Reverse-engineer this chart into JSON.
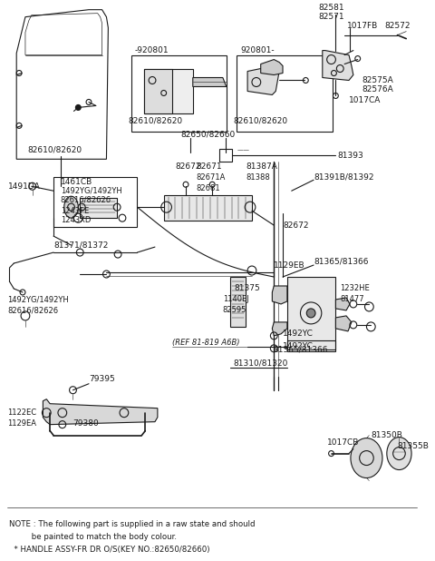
{
  "bg_color": "#ffffff",
  "fig_width": 4.8,
  "fig_height": 6.18,
  "dpi": 100,
  "note_lines": [
    "NOTE : The following part is supplied in a raw state and should",
    "         be painted to match the body colour.",
    "  * HANDLE ASSY-FR DR O/S(KEY NO.:82650/82660)"
  ],
  "lc": "#1a1a1a"
}
